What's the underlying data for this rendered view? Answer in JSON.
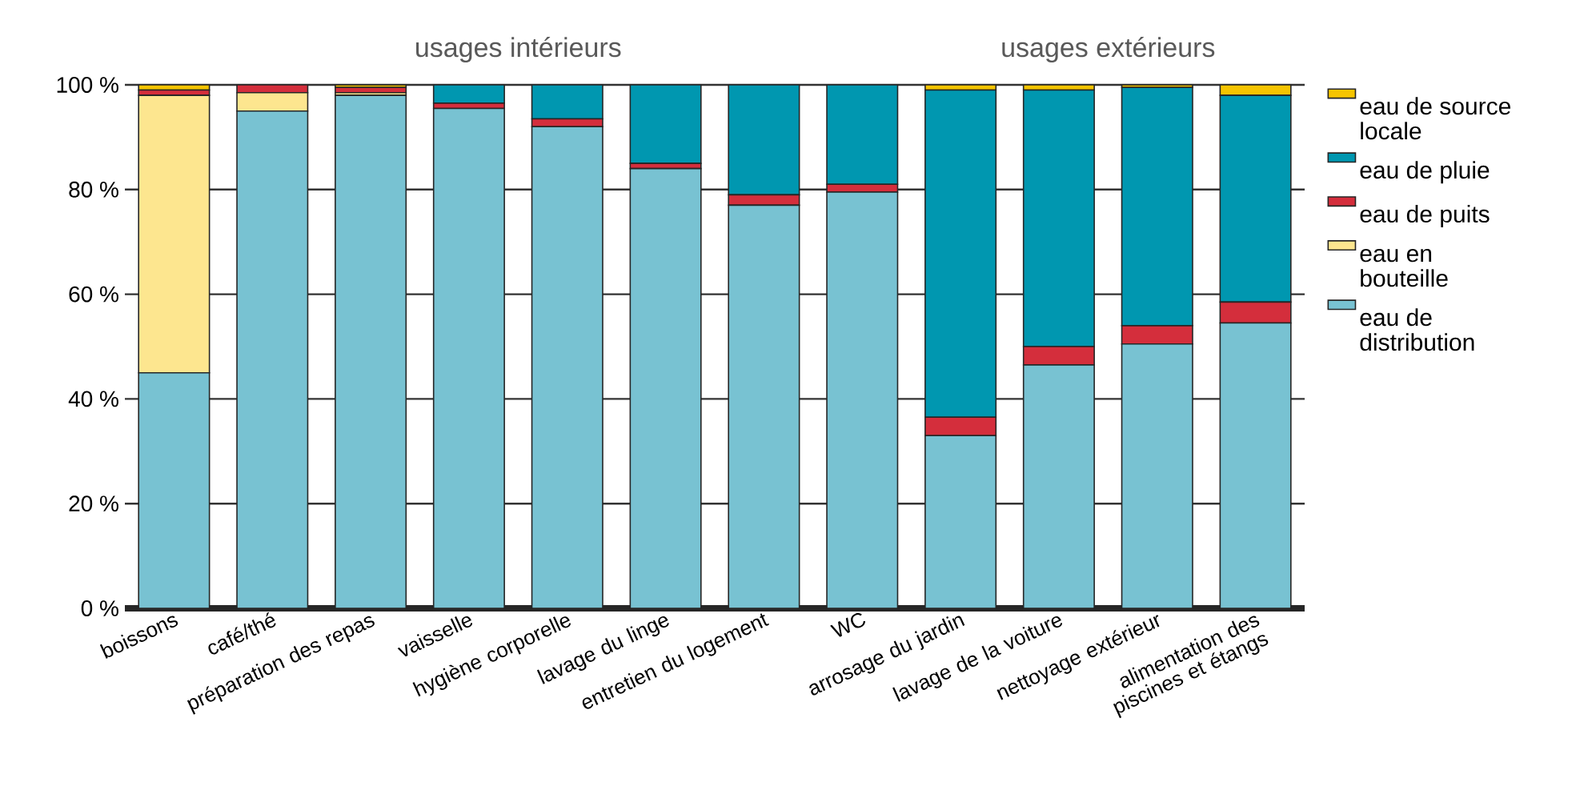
{
  "chart_data": {
    "type": "bar",
    "stacked": true,
    "categories": [
      "boissons",
      "café/thé",
      "préparation des repas",
      "vaisselle",
      "hygiène corporelle",
      "lavage du linge",
      "entretien du logement",
      "WC",
      "arrosage du jardin",
      "lavage de la voiture",
      "nettoyage extérieur",
      "alimentation des piscines et étangs"
    ],
    "series": [
      {
        "name": "eau de distribution",
        "color": "#78c2d2",
        "values": [
          45,
          95,
          98,
          95.5,
          92,
          84,
          77,
          79.5,
          33,
          46.5,
          50.5,
          54.5
        ]
      },
      {
        "name": "eau en bouteille",
        "color": "#fde68f",
        "values": [
          53,
          3.5,
          0.5,
          0,
          0,
          0,
          0,
          0,
          0,
          0,
          0,
          0
        ]
      },
      {
        "name": "eau de puits",
        "color": "#d42e3c",
        "values": [
          1,
          1.5,
          1,
          1,
          1.5,
          1,
          2,
          1.5,
          3.5,
          3.5,
          3.5,
          4
        ]
      },
      {
        "name": "eau de pluie",
        "color": "#0097b0",
        "values": [
          0,
          0,
          0,
          3.5,
          6.5,
          15,
          21,
          19,
          62.5,
          49,
          45.5,
          39.5
        ]
      },
      {
        "name": "eau de source locale",
        "color": "#f5c400",
        "values": [
          1,
          0,
          0.5,
          0,
          0,
          0,
          0,
          0,
          1,
          1,
          0.5,
          2
        ]
      }
    ],
    "ylim": [
      0,
      100
    ],
    "yticks": [
      {
        "value": 0,
        "label": "0 %"
      },
      {
        "value": 20,
        "label": "20 %"
      },
      {
        "value": 40,
        "label": "40 %"
      },
      {
        "value": 60,
        "label": "60 %"
      },
      {
        "value": 80,
        "label": "80 %"
      },
      {
        "value": 100,
        "label": "100 %"
      }
    ],
    "grid": "y",
    "legend": "right",
    "annotations": [
      "usages intérieurs",
      "usages extérieurs"
    ]
  }
}
